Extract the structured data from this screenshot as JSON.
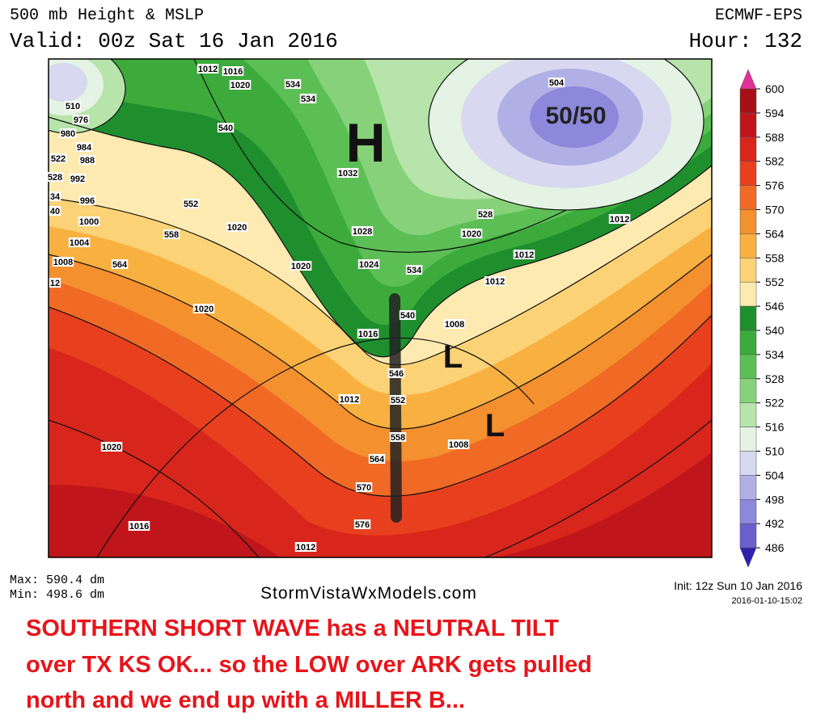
{
  "header": {
    "title": "500 mb Height & MSLP",
    "valid": "Valid: 00z Sat 16 Jan 2016",
    "model": "ECMWF-EPS",
    "hour": "Hour: 132"
  },
  "colorbar": {
    "levels": [
      "600",
      "594",
      "588",
      "582",
      "576",
      "570",
      "564",
      "558",
      "552",
      "546",
      "540",
      "534",
      "528",
      "522",
      "516",
      "510",
      "504",
      "498",
      "492",
      "486"
    ],
    "colors": [
      "#a50f15",
      "#c0161b",
      "#d9261c",
      "#e8401e",
      "#f06a26",
      "#f5902e",
      "#f8b040",
      "#fbd276",
      "#fdeab0",
      "#1f8f2e",
      "#3cab3c",
      "#5cbf55",
      "#87d17a",
      "#b6e4aa",
      "#e4f3e4",
      "#d8d8f0",
      "#b0b0e6",
      "#8c88dc",
      "#6a60cc"
    ],
    "top_color": "#e0309a",
    "bottom_color": "#3020b0"
  },
  "map": {
    "high": "H",
    "lows": [
      "L",
      "L"
    ],
    "feature": "50/50",
    "contour_labels": [
      "1012",
      "1016",
      "1020",
      "976",
      "980",
      "984",
      "988",
      "992",
      "996",
      "1000",
      "1004",
      "1008",
      "12",
      "510",
      "540",
      "534",
      "534",
      "552",
      "558",
      "564",
      "1032",
      "1020",
      "1028",
      "1020",
      "1024",
      "1020",
      "1016",
      "1012",
      "1020",
      "1016",
      "1012",
      "1008",
      "1008",
      "1012",
      "1012",
      "1020",
      "1012",
      "528",
      "534",
      "540",
      "546",
      "552",
      "558",
      "564",
      "570",
      "576",
      "504",
      "522",
      "528",
      "34",
      "40"
    ]
  },
  "footer": {
    "max": "Max: 590.4 dm",
    "min": "Min: 498.6 dm",
    "site": "StormVistaWxModels.com",
    "init": "Init: 12z Sun 10 Jan 2016",
    "timestamp": "2016-01-10-15:02"
  },
  "annotation": {
    "lines": [
      "SOUTHERN SHORT WAVE  has a NEUTRAL TILT",
      "over TX  KS OK... so the  LOW over ARK gets pulled",
      "north  and we end up with a MILLER  B..."
    ]
  }
}
